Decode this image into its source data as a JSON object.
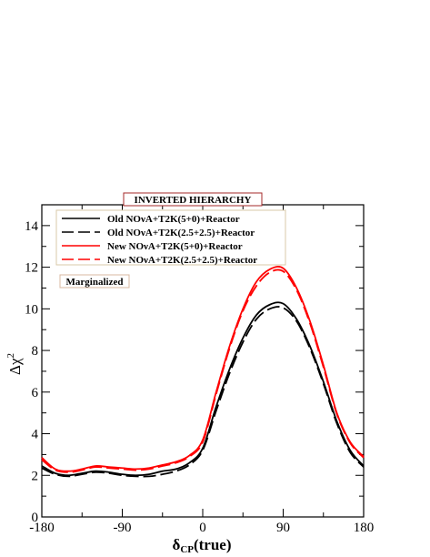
{
  "chart_data": {
    "type": "line",
    "title": "INVERTED HIERARCHY",
    "annotation": "Marginalized",
    "xlabel": "δCP(true)",
    "ylabel": "Δχ²",
    "xlim": [
      -180,
      180
    ],
    "ylim": [
      0,
      15
    ],
    "xticks": [
      -180,
      -90,
      0,
      90,
      180
    ],
    "yticks": [
      0,
      2,
      4,
      6,
      8,
      10,
      12,
      14
    ],
    "x": [
      -180,
      -165,
      -150,
      -135,
      -120,
      -105,
      -90,
      -75,
      -60,
      -45,
      -30,
      -15,
      0,
      15,
      30,
      45,
      60,
      75,
      90,
      105,
      120,
      135,
      150,
      165,
      180
    ],
    "series": [
      {
        "name": "Old NOνA+T2K(5+0)+Reactor",
        "color": "#000000",
        "dash": "solid",
        "values": [
          2.45,
          2.1,
          2.0,
          2.1,
          2.2,
          2.15,
          2.05,
          2.0,
          2.05,
          2.2,
          2.3,
          2.6,
          3.3,
          5.3,
          7.1,
          8.6,
          9.7,
          10.2,
          10.25,
          9.5,
          8.2,
          6.5,
          4.6,
          3.2,
          2.45
        ]
      },
      {
        "name": "Old NOνA+T2K(2.5+2.5)+Reactor",
        "color": "#000000",
        "dash": "long-dash",
        "values": [
          2.35,
          2.05,
          1.95,
          2.05,
          2.15,
          2.1,
          2.0,
          1.95,
          1.95,
          2.05,
          2.2,
          2.5,
          3.2,
          5.1,
          6.9,
          8.4,
          9.5,
          10.0,
          10.05,
          9.4,
          8.1,
          6.4,
          4.5,
          3.1,
          2.4
        ]
      },
      {
        "name": "New NOνA+T2K(5+0)+Reactor",
        "color": "#ff0000",
        "dash": "solid",
        "values": [
          2.85,
          2.3,
          2.2,
          2.3,
          2.45,
          2.4,
          2.35,
          2.3,
          2.35,
          2.5,
          2.65,
          2.95,
          3.7,
          6.0,
          8.2,
          10.0,
          11.3,
          11.9,
          11.95,
          11.0,
          9.4,
          7.3,
          5.0,
          3.6,
          2.9
        ]
      },
      {
        "name": "New NOνA+T2K(2.5+2.5)+Reactor",
        "color": "#ff0000",
        "dash": "long-dash",
        "values": [
          2.75,
          2.25,
          2.15,
          2.25,
          2.4,
          2.35,
          2.3,
          2.25,
          2.3,
          2.45,
          2.6,
          2.9,
          3.6,
          5.9,
          8.1,
          9.9,
          11.1,
          11.75,
          11.8,
          10.9,
          9.3,
          7.2,
          4.95,
          3.55,
          2.85
        ]
      }
    ]
  }
}
